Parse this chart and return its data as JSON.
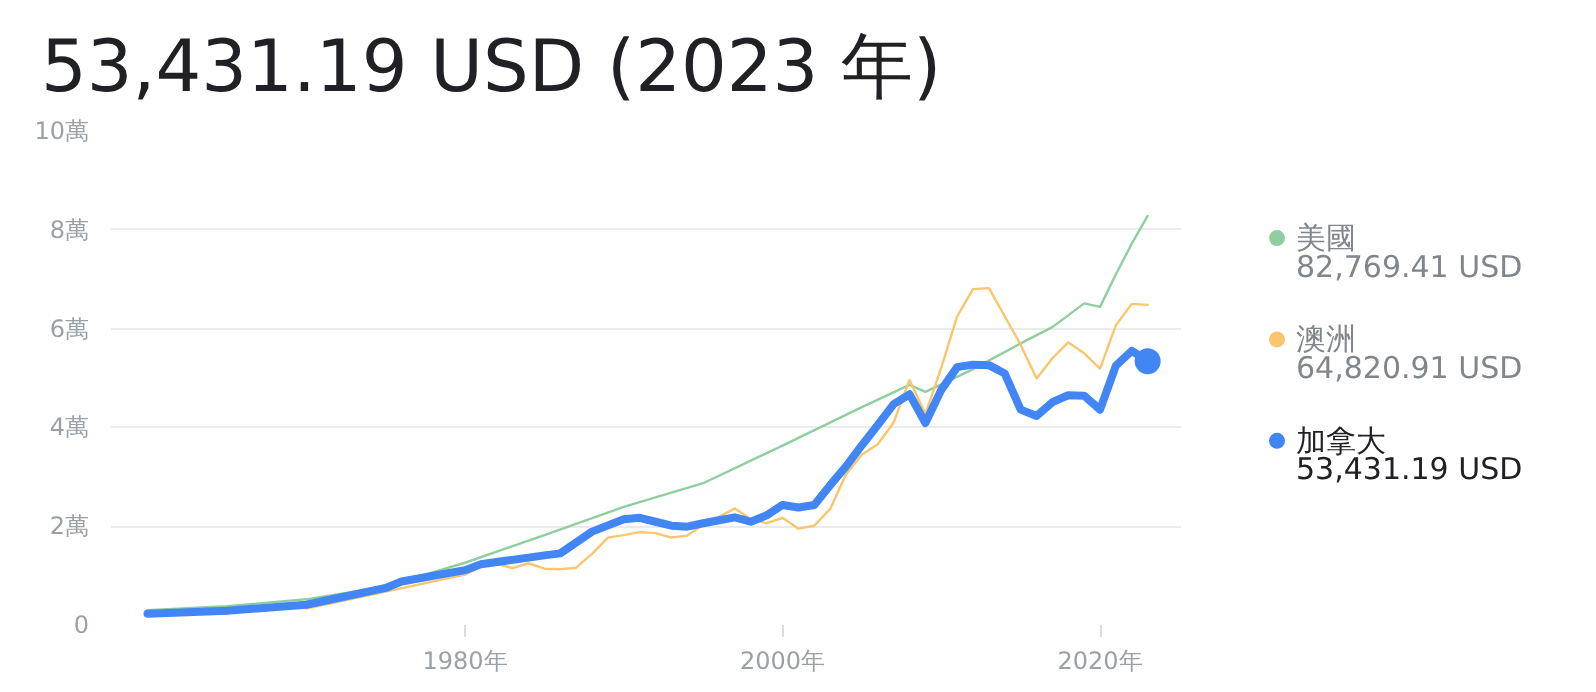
{
  "chart_data": {
    "type": "line",
    "title": "53,431.19 USD (2023 年)",
    "xlim": [
      1957.7,
      2025.1
    ],
    "xticks": [
      {
        "value": 1980,
        "label": "1980年"
      },
      {
        "value": 2000,
        "label": "2000年"
      },
      {
        "value": 2020,
        "label": "2020年"
      }
    ],
    "ylim": [
      0,
      10
    ],
    "yticks": [
      0,
      {
        "value": 2,
        "label": "2萬"
      },
      {
        "value": 4,
        "label": "4萬"
      },
      {
        "value": 6,
        "label": "6萬"
      },
      {
        "value": 8,
        "label": "8萬"
      },
      {
        "value": 10,
        "label": "10萬"
      }
    ],
    "grid": "y",
    "legend": "right",
    "annotations": [
      "82,769.41 USD",
      "64,820.91 USD",
      "53,431.19 USD"
    ],
    "series": [
      {
        "name": "美國",
        "color": "#8fcf9f",
        "x": [
          1960,
          1965,
          1970,
          1975,
          1980,
          1985,
          1990,
          1995,
          2000,
          2005,
          2008,
          2009,
          2010,
          2012,
          2015,
          2017,
          2019,
          2020,
          2021,
          2022,
          2023
        ],
        "values": [
          0.3,
          0.38,
          0.52,
          0.78,
          1.26,
          1.82,
          2.39,
          2.87,
          3.63,
          4.41,
          4.86,
          4.72,
          4.87,
          5.18,
          5.7,
          6.03,
          6.51,
          6.44,
          7.1,
          7.72,
          8.28
        ]
      },
      {
        "name": "澳洲",
        "color": "#f9c66b",
        "x": [
          1970,
          1980,
          1981,
          1982,
          1983,
          1984,
          1985,
          1986,
          1987,
          1988,
          1989,
          1990,
          1991,
          1992,
          1993,
          1994,
          1995,
          1996,
          1997,
          1998,
          1999,
          2000,
          2001,
          2002,
          2003,
          2004,
          2005,
          2006,
          2007,
          2008,
          2009,
          2010,
          2011,
          2012,
          2013,
          2014,
          2015,
          2016,
          2017,
          2018,
          2019,
          2020,
          2021,
          2022,
          2023
        ],
        "values": [
          0.33,
          1.02,
          1.18,
          1.24,
          1.15,
          1.25,
          1.14,
          1.13,
          1.16,
          1.44,
          1.77,
          1.82,
          1.88,
          1.86,
          1.77,
          1.81,
          2.03,
          2.19,
          2.36,
          2.14,
          2.06,
          2.17,
          1.95,
          2.01,
          2.35,
          3.05,
          3.45,
          3.66,
          4.1,
          4.96,
          4.27,
          5.21,
          6.25,
          6.8,
          6.82,
          6.25,
          5.67,
          4.99,
          5.4,
          5.72,
          5.5,
          5.19,
          6.07,
          6.5,
          6.48
        ]
      },
      {
        "name": "加拿大",
        "color": "#4285f4",
        "x": [
          1960,
          1965,
          1970,
          1975,
          1976,
          1980,
          1981,
          1985,
          1986,
          1988,
          1990,
          1991,
          1992,
          1993,
          1994,
          1995,
          1996,
          1997,
          1998,
          1999,
          2000,
          2001,
          2002,
          2003,
          2004,
          2005,
          2006,
          2007,
          2008,
          2009,
          2010,
          2011,
          2012,
          2013,
          2014,
          2015,
          2016,
          2017,
          2018,
          2019,
          2020,
          2021,
          2022,
          2023
        ],
        "values": [
          0.23,
          0.29,
          0.41,
          0.75,
          0.88,
          1.11,
          1.23,
          1.41,
          1.45,
          1.89,
          2.14,
          2.17,
          2.09,
          2.01,
          1.99,
          2.06,
          2.12,
          2.18,
          2.09,
          2.22,
          2.43,
          2.38,
          2.43,
          2.83,
          3.21,
          3.64,
          4.05,
          4.47,
          4.67,
          4.09,
          4.76,
          5.22,
          5.27,
          5.26,
          5.09,
          4.36,
          4.23,
          4.51,
          4.65,
          4.64,
          4.36,
          5.25,
          5.55,
          5.34
        ]
      },
      {
        "type": "scatter",
        "color": "#4285f4",
        "x": [
          2023
        ],
        "values": [
          5.34
        ]
      }
    ]
  }
}
